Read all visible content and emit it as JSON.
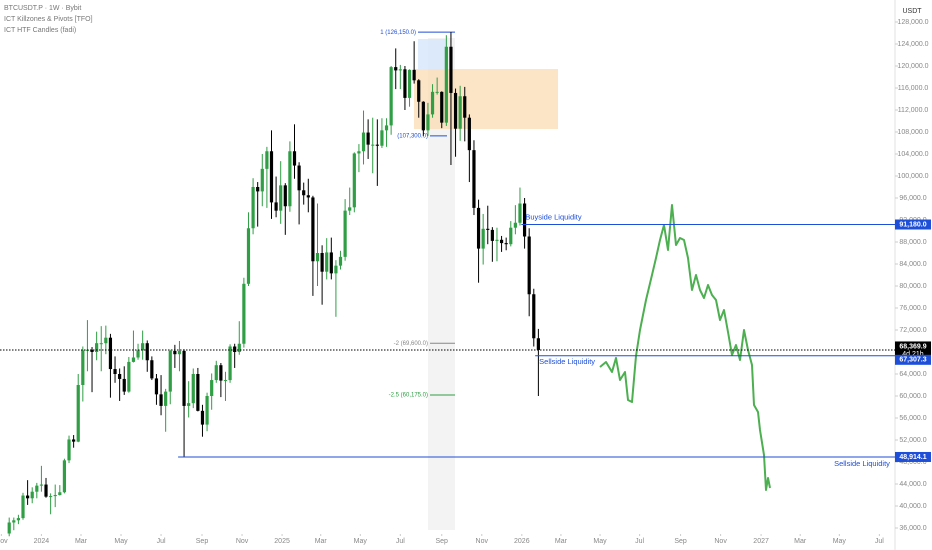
{
  "chart_data": {
    "type": "candlestick",
    "symbol": "BTCUSDT.P · 1W · Bybit",
    "indicators": [
      "ICT Killzones & Pivots [TFO]",
      "ICT HTF Candles (fadi)"
    ],
    "currency": "USDT",
    "up_color": "#2f9e44",
    "down_color": "#000000",
    "xlim": [
      -9,
      185.5
    ],
    "xticks": [
      {
        "value": -8.7,
        "label": "Nov"
      },
      {
        "value": 0,
        "label": "2024"
      },
      {
        "value": 8.6,
        "label": "Mar"
      },
      {
        "value": 17.3,
        "label": "May"
      },
      {
        "value": 26,
        "label": "Jul"
      },
      {
        "value": 34.9,
        "label": "Sep"
      },
      {
        "value": 43.6,
        "label": "Nov"
      },
      {
        "value": 52.3,
        "label": "2025"
      },
      {
        "value": 60.7,
        "label": "Mar"
      },
      {
        "value": 69.3,
        "label": "May"
      },
      {
        "value": 78,
        "label": "Jul"
      },
      {
        "value": 87,
        "label": "Sep"
      },
      {
        "value": 95.7,
        "label": "Nov"
      },
      {
        "value": 104.4,
        "label": "2026"
      },
      {
        "value": 112.9,
        "label": "Mar"
      },
      {
        "value": 121.4,
        "label": "May"
      },
      {
        "value": 130,
        "label": "Jul"
      },
      {
        "value": 138.9,
        "label": "Sep"
      },
      {
        "value": 147.6,
        "label": "Nov"
      },
      {
        "value": 156.4,
        "label": "2027"
      },
      {
        "value": 164.9,
        "label": "Mar"
      },
      {
        "value": 173.4,
        "label": "May"
      },
      {
        "value": 182.1,
        "label": "Jul"
      }
    ],
    "ylim": [
      32000,
      132000
    ],
    "yticks": [
      {
        "value": 36000,
        "label": "36,000.0"
      },
      {
        "value": 40000,
        "label": "40,000.0"
      },
      {
        "value": 44000,
        "label": "44,000.0"
      },
      {
        "value": 48000,
        "label": "48,000.0"
      },
      {
        "value": 52000,
        "label": "52,000.0"
      },
      {
        "value": 56000,
        "label": "56,000.0"
      },
      {
        "value": 60000,
        "label": "60,000.0"
      },
      {
        "value": 64000,
        "label": "64,000.0"
      },
      {
        "value": 68000,
        "label": "68,000.0"
      },
      {
        "value": 72000,
        "label": "72,000.0"
      },
      {
        "value": 76000,
        "label": "76,000.0"
      },
      {
        "value": 80000,
        "label": "80,000.0"
      },
      {
        "value": 84000,
        "label": "84,000.0"
      },
      {
        "value": 88000,
        "label": "88,000.0"
      },
      {
        "value": 92000,
        "label": "92,000.0"
      },
      {
        "value": 96000,
        "label": "96,000.0"
      },
      {
        "value": 100000,
        "label": "100,000.0"
      },
      {
        "value": 104000,
        "label": "104,000.0"
      },
      {
        "value": 108000,
        "label": "108,000.0"
      },
      {
        "value": 112000,
        "label": "112,000.0"
      },
      {
        "value": 116000,
        "label": "116,000.0"
      },
      {
        "value": 120000,
        "label": "120,000.0"
      },
      {
        "value": 124000,
        "label": "124,000.0"
      },
      {
        "value": 128000,
        "label": "128,000.0"
      }
    ],
    "x": [
      -7,
      -6,
      -5,
      -4,
      -3,
      -2,
      -1,
      0,
      1,
      2,
      3,
      4,
      5,
      6,
      7,
      8,
      9,
      10,
      11,
      12,
      13,
      14,
      15,
      16,
      17,
      18,
      19,
      20,
      21,
      22,
      23,
      24,
      25,
      26,
      27,
      28,
      29,
      30,
      31,
      32,
      33,
      34,
      35,
      36,
      37,
      38,
      39,
      40,
      41,
      42,
      43,
      44,
      45,
      46,
      47,
      48,
      49,
      50,
      51,
      52,
      53,
      54,
      55,
      56,
      57,
      58,
      59,
      60,
      61,
      62,
      63,
      64,
      65,
      66,
      67,
      68,
      69,
      70,
      71,
      72,
      73,
      74,
      75,
      76,
      77,
      78,
      79,
      80,
      81,
      82,
      83,
      84,
      85,
      86,
      87,
      88,
      89,
      90,
      91,
      92,
      93,
      94,
      95,
      96,
      97,
      98,
      99,
      100,
      101,
      102,
      103,
      104,
      105,
      106,
      107,
      108
    ],
    "ohlc": [
      [
        35000,
        37900,
        34500,
        37000
      ],
      [
        37000,
        37900,
        35600,
        37400
      ],
      [
        37400,
        38400,
        36700,
        37800
      ],
      [
        37800,
        42400,
        37500,
        41900
      ],
      [
        41900,
        44700,
        40200,
        41400
      ],
      [
        41400,
        43400,
        40500,
        42600
      ],
      [
        42600,
        44200,
        41400,
        43700
      ],
      [
        43700,
        47300,
        42600,
        43900
      ],
      [
        43900,
        45100,
        41500,
        41700
      ],
      [
        41700,
        42300,
        38500,
        41800
      ],
      [
        41800,
        43900,
        39800,
        42000
      ],
      [
        42000,
        43800,
        41900,
        42500
      ],
      [
        42500,
        48600,
        42300,
        48300
      ],
      [
        48300,
        52800,
        47800,
        52100
      ],
      [
        52100,
        52900,
        50600,
        51700
      ],
      [
        51700,
        64000,
        51600,
        62000
      ],
      [
        62000,
        69000,
        59000,
        68300
      ],
      [
        68300,
        73800,
        64500,
        68400
      ],
      [
        68400,
        68900,
        60700,
        68000
      ],
      [
        68000,
        71700,
        66500,
        69600
      ],
      [
        69600,
        72700,
        64500,
        69600
      ],
      [
        69600,
        72800,
        67600,
        70600
      ],
      [
        70600,
        71300,
        59700,
        64900
      ],
      [
        64900,
        67200,
        62400,
        64000
      ],
      [
        64000,
        65000,
        59100,
        63100
      ],
      [
        63100,
        65400,
        60200,
        60800
      ],
      [
        60800,
        67100,
        60600,
        66200
      ],
      [
        66200,
        71900,
        66100,
        67000
      ],
      [
        67000,
        69500,
        66600,
        68300
      ],
      [
        68300,
        71900,
        66600,
        69600
      ],
      [
        69600,
        70100,
        64400,
        66500
      ],
      [
        66500,
        67200,
        62900,
        63200
      ],
      [
        63200,
        64000,
        58400,
        60300
      ],
      [
        60300,
        63800,
        56500,
        58200
      ],
      [
        58200,
        61300,
        53500,
        60800
      ],
      [
        60800,
        68400,
        58500,
        68200
      ],
      [
        68200,
        69300,
        65100,
        67600
      ],
      [
        67600,
        70000,
        64500,
        68200
      ],
      [
        68200,
        68500,
        49000,
        58200
      ],
      [
        58200,
        62700,
        56100,
        58700
      ],
      [
        58700,
        65000,
        57800,
        64000
      ],
      [
        64000,
        65100,
        57200,
        57300
      ],
      [
        57300,
        58400,
        52600,
        54800
      ],
      [
        54800,
        60600,
        53600,
        60000
      ],
      [
        60000,
        64100,
        57500,
        62900
      ],
      [
        62900,
        66400,
        62400,
        65600
      ],
      [
        65600,
        66000,
        59800,
        62800
      ],
      [
        62800,
        64400,
        59100,
        62900
      ],
      [
        62900,
        69400,
        62400,
        69000
      ],
      [
        69000,
        69500,
        65100,
        68000
      ],
      [
        68000,
        73600,
        67500,
        69500
      ],
      [
        69500,
        81500,
        68800,
        80400
      ],
      [
        80400,
        93400,
        80000,
        90500
      ],
      [
        90500,
        99600,
        89400,
        98000
      ],
      [
        98000,
        98900,
        90800,
        97200
      ],
      [
        97200,
        104000,
        94500,
        101300
      ],
      [
        101300,
        105300,
        94200,
        104500
      ],
      [
        104500,
        108300,
        92200,
        95200
      ],
      [
        95200,
        99900,
        92500,
        93700
      ],
      [
        93700,
        102700,
        91300,
        98300
      ],
      [
        98300,
        98700,
        89300,
        94500
      ],
      [
        94500,
        106300,
        93500,
        104500
      ],
      [
        104500,
        109400,
        99500,
        101900
      ],
      [
        101900,
        102500,
        91200,
        97400
      ],
      [
        97400,
        98800,
        94800,
        96500
      ],
      [
        96500,
        99500,
        93400,
        96100
      ],
      [
        96100,
        96400,
        78200,
        84500
      ],
      [
        84500,
        95000,
        80000,
        86000
      ],
      [
        86000,
        87400,
        76600,
        82600
      ],
      [
        82600,
        88700,
        81200,
        86100
      ],
      [
        86100,
        88800,
        81200,
        82300
      ],
      [
        82300,
        84700,
        74400,
        83700
      ],
      [
        83700,
        86400,
        83000,
        85300
      ],
      [
        85300,
        95800,
        84600,
        93700
      ],
      [
        93700,
        97900,
        92900,
        94300
      ],
      [
        94300,
        104300,
        93400,
        104100
      ],
      [
        104100,
        105800,
        100700,
        104500
      ],
      [
        104500,
        111900,
        102100,
        107900
      ],
      [
        107900,
        110300,
        103100,
        105700
      ],
      [
        105700,
        110600,
        100500,
        105700
      ],
      [
        105700,
        110300,
        98200,
        105500
      ],
      [
        105500,
        110500,
        105100,
        108300
      ],
      [
        108300,
        110500,
        105300,
        109200
      ],
      [
        109200,
        120000,
        107500,
        119800
      ],
      [
        119800,
        123200,
        115800,
        119200
      ],
      [
        119200,
        120200,
        115800,
        119400
      ],
      [
        119400,
        120000,
        112000,
        114200
      ],
      [
        114200,
        119400,
        112600,
        119300
      ],
      [
        119300,
        124500,
        116800,
        117400
      ],
      [
        117400,
        117600,
        110600,
        113500
      ],
      [
        113500,
        113600,
        107300,
        108300
      ],
      [
        108300,
        113300,
        107300,
        111200
      ],
      [
        111200,
        116700,
        110600,
        115300
      ],
      [
        115300,
        117900,
        114800,
        115300
      ],
      [
        115300,
        115400,
        108700,
        109700
      ],
      [
        109700,
        125600,
        109100,
        123500
      ],
      [
        123500,
        126150,
        102000,
        115100
      ],
      [
        115100,
        115900,
        103500,
        108600
      ],
      [
        108600,
        116400,
        106400,
        114500
      ],
      [
        114500,
        116200,
        106300,
        110600
      ],
      [
        110600,
        111200,
        98900,
        104700
      ],
      [
        104700,
        106500,
        92900,
        94200
      ],
      [
        94200,
        95700,
        80600,
        86800
      ],
      [
        86800,
        93100,
        83900,
        90400
      ],
      [
        90400,
        94600,
        87600,
        90200
      ],
      [
        90200,
        90700,
        84400,
        88200
      ],
      [
        88200,
        90600,
        84500,
        88400
      ],
      [
        88400,
        89100,
        86200,
        87800
      ],
      [
        87800,
        88800,
        86500,
        87600
      ],
      [
        87600,
        91800,
        87200,
        90600
      ],
      [
        90600,
        94700,
        89400,
        91500
      ],
      [
        91500,
        97900,
        91000,
        95000
      ],
      [
        95000,
        96000,
        86800,
        89000
      ],
      [
        89000,
        90500,
        74500,
        78500
      ],
      [
        78500,
        79500,
        69000,
        70500
      ],
      [
        70500,
        72200,
        60000,
        68370
      ]
    ],
    "levels": [
      {
        "name": "Buyside Liquidity",
        "value": 91180,
        "label": "91,180.0",
        "from": 104.3,
        "color": "#1e4fd8"
      },
      {
        "name": "Sellside Liquidity",
        "value": 67307.3,
        "label": "67,307.3",
        "from": 107.3,
        "color": "#1e4fd8"
      },
      {
        "name": "Sellside Liquidity",
        "value": 48914.1,
        "label": "48,914.1",
        "from": 29.7,
        "color": "#1e4fd8"
      }
    ],
    "last_price": {
      "value": 68369.9,
      "label": "68,369.9",
      "countdown": "4d 21h"
    },
    "fibs": [
      {
        "value": 126150,
        "label": "1 (126,150.0)",
        "color": "#1e4fd8"
      },
      {
        "value": 107300,
        "label": "(107,300.0)",
        "color": "#1e4fd8"
      },
      {
        "value": 69600,
        "label": "-2 (69,600.0)",
        "color": "#888888"
      },
      {
        "value": 60175,
        "label": "-2.5 (60,175.0)",
        "color": "#2f9e44"
      }
    ]
  }
}
